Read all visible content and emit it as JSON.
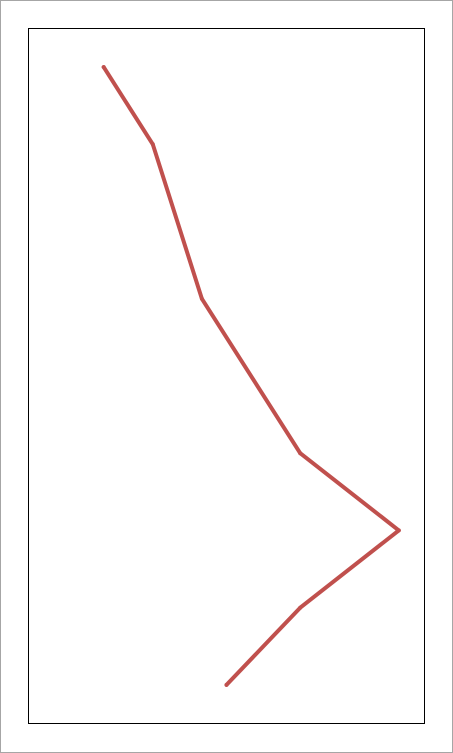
{
  "chart_data": {
    "type": "line",
    "title": "",
    "xlabel": "",
    "ylabel": "",
    "orientation": "vertical-category",
    "xlim": [
      0,
      100
    ],
    "ylim": [
      0,
      9
    ],
    "grid": false,
    "legend": "none",
    "series": [
      {
        "color": "#c0504d",
        "points": [
          {
            "x": 19,
            "y": 8.5
          },
          {
            "x": 31.4,
            "y": 7.5
          },
          {
            "x": 43.8,
            "y": 5.5
          },
          {
            "x": 68.6,
            "y": 3.5
          },
          {
            "x": 93.5,
            "y": 2.5
          },
          {
            "x": 68.6,
            "y": 1.5
          },
          {
            "x": 50.0,
            "y": 0.5
          }
        ]
      }
    ]
  },
  "colors": {
    "frame": "#a6a6a6",
    "plot_border": "#000000",
    "line": "#c0504d"
  }
}
